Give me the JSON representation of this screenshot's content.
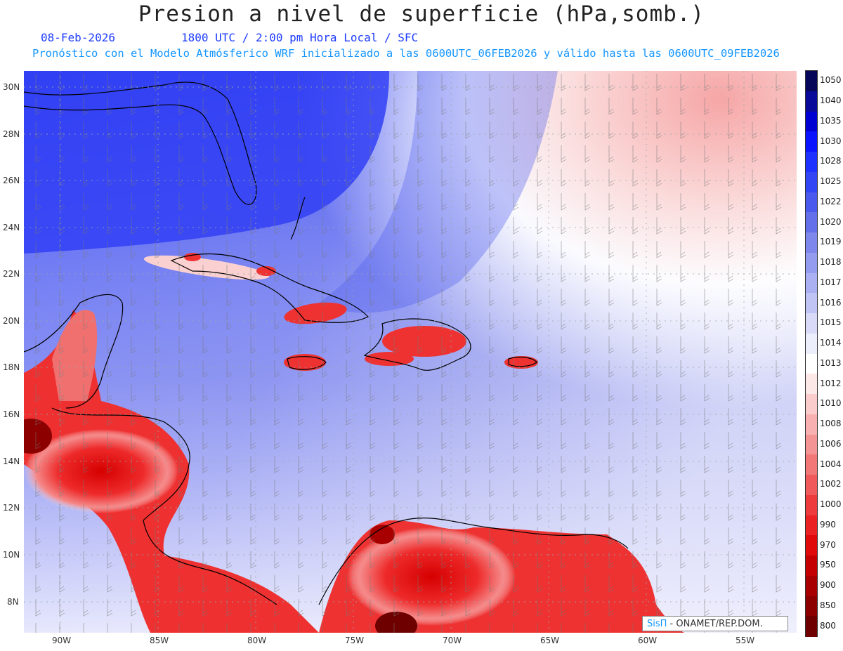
{
  "title": "Presion a nivel de superficie (hPa,somb.)",
  "date_label": "08-Feb-2026",
  "time_label": "1800 UTC / 2:00 pm Hora Local / SFC",
  "model_line": "Pronóstico con el Modelo Atmósferico WRF inicializado a las 0600UTC_06FEB2026 y válido hasta las  0600UTC_09FEB2026",
  "credit": {
    "brand": "SisΠ",
    "org": " - ONAMET/REP.DOM."
  },
  "lat_ticks": [
    "30N",
    "28N",
    "26N",
    "24N",
    "22N",
    "20N",
    "18N",
    "16N",
    "14N",
    "12N",
    "10N",
    "8N"
  ],
  "lon_ticks": [
    "90W",
    "85W",
    "80W",
    "75W",
    "70W",
    "65W",
    "60W",
    "55W"
  ],
  "colorbar": {
    "levels": [
      "1050",
      "1040",
      "1035",
      "1030",
      "1028",
      "1025",
      "1022",
      "1020",
      "1019",
      "1018",
      "1017",
      "1016",
      "1015",
      "1014",
      "1013",
      "1012",
      "1010",
      "1008",
      "1006",
      "1004",
      "1002",
      "1000",
      "990",
      "970",
      "950",
      "900",
      "850",
      "800"
    ],
    "colors": [
      "#06065a",
      "#0a0a9a",
      "#0000d2",
      "#0a14ff",
      "#1e32ff",
      "#3246f5",
      "#4b5aee",
      "#6470ea",
      "#7d87ec",
      "#949cef",
      "#aab0f2",
      "#c0c4f5",
      "#d8daf8",
      "#eceefc",
      "#ffffff",
      "#fde8e8",
      "#fbcccc",
      "#f8b0b0",
      "#f59494",
      "#f27878",
      "#f05a5a",
      "#ee3c3c",
      "#ea2222",
      "#e00a0a",
      "#c40000",
      "#a80000",
      "#8c0000",
      "#6e0000"
    ]
  },
  "map": {
    "pressure_field": "sea-level pressure shading",
    "wind_field": "wind barbs",
    "lat_range": [
      7,
      30.7
    ],
    "lon_range": [
      -92,
      -52.7
    ]
  }
}
